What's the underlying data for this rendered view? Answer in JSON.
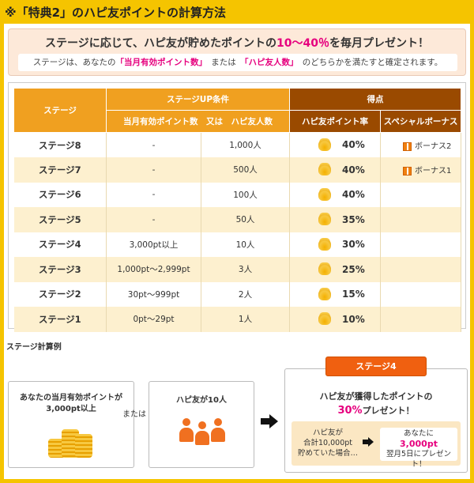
{
  "title": "※「特典2」のハピ友ポイントの計算方法",
  "intro": {
    "headline_pre": "ステージに応じて、ハピ友が貯めたポイントの",
    "headline_highlight": "10〜40％",
    "headline_post": "を毎月プレゼント！",
    "sub_pre": "ステージは、あなたの",
    "sub_hl1": "「当月有効ポイント数」",
    "sub_mid": "または",
    "sub_hl2": "「ハピ友人数」",
    "sub_post": "のどちらかを満たすと確定されます。"
  },
  "table": {
    "headers": {
      "stage": "ステージ",
      "conditions": "ステージUP条件",
      "conditions_sub": "当月有効ポイント数　又は　ハピ友人数",
      "score": "得点",
      "rate": "ハピ友ポイント率",
      "bonus": "スペシャルボーナス"
    },
    "rows": [
      {
        "stage": "ステージ8",
        "points": "-",
        "friends": "1,000人",
        "rate": "40%",
        "bonus": "ボーナス2"
      },
      {
        "stage": "ステージ7",
        "points": "-",
        "friends": "500人",
        "rate": "40%",
        "bonus": "ボーナス1"
      },
      {
        "stage": "ステージ6",
        "points": "-",
        "friends": "100人",
        "rate": "40%",
        "bonus": ""
      },
      {
        "stage": "ステージ5",
        "points": "-",
        "friends": "50人",
        "rate": "35%",
        "bonus": ""
      },
      {
        "stage": "ステージ4",
        "points": "3,000pt以上",
        "friends": "10人",
        "rate": "30%",
        "bonus": ""
      },
      {
        "stage": "ステージ3",
        "points": "1,000pt〜2,999pt",
        "friends": "3人",
        "rate": "25%",
        "bonus": ""
      },
      {
        "stage": "ステージ2",
        "points": "30pt〜999pt",
        "friends": "2人",
        "rate": "15%",
        "bonus": ""
      },
      {
        "stage": "ステージ1",
        "points": "0pt〜29pt",
        "friends": "1人",
        "rate": "10%",
        "bonus": ""
      }
    ]
  },
  "example": {
    "label": "ステージ計算例",
    "box1_line1": "あなたの当月有効ポイントが",
    "box1_line2": "3,000pt以上",
    "or": "または",
    "box2": "ハピ友が10人",
    "badge": "ステージ4",
    "result_line1": "ハピ友が獲得したポイントの",
    "result_highlight": "30%",
    "result_post": "プレゼント！",
    "inner_a1": "ハピ友が",
    "inner_a2": "合計10,000pt",
    "inner_a3": "貯めていた場合…",
    "inner_b1": "あなたに",
    "inner_b2": "3,000pt",
    "inner_b3": "翌月5日にプレゼント！"
  },
  "colors": {
    "accent_yellow": "#f5c400",
    "header_orange": "#f0a020",
    "header_brown": "#9a4a00",
    "highlight_pink": "#e6007e",
    "row_alt": "#fdf0cf",
    "badge_orange": "#f06010"
  }
}
